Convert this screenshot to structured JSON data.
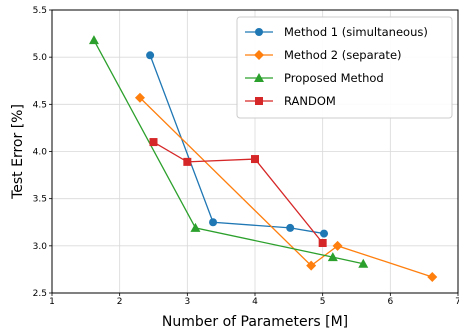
{
  "chart_data": {
    "type": "line",
    "title": "",
    "xlabel": "Number of Parameters [M]",
    "ylabel": "Test Error [%]",
    "xlim": [
      1,
      7
    ],
    "ylim": [
      2.5,
      5.5
    ],
    "xticks": [
      1,
      2,
      3,
      4,
      5,
      6,
      7
    ],
    "yticks": [
      2.5,
      3.0,
      3.5,
      4.0,
      4.5,
      5.0,
      5.5
    ],
    "xtick_labels": [
      "1",
      "2",
      "3",
      "4",
      "5",
      "6",
      "7"
    ],
    "ytick_labels": [
      "2.5",
      "3.0",
      "3.5",
      "4.0",
      "4.5",
      "5.0",
      "5.5"
    ],
    "grid": true,
    "legend_position": "top-right",
    "series": [
      {
        "name": "Method 1 (simultaneous)",
        "color": "#1f77b4",
        "marker": "circle",
        "x": [
          2.45,
          3.38,
          4.52,
          5.02
        ],
        "y": [
          5.02,
          3.25,
          3.19,
          3.13
        ]
      },
      {
        "name": "Method 2 (separate)",
        "color": "#ff7f0e",
        "marker": "diamond",
        "x": [
          2.3,
          4.83,
          5.22,
          6.62
        ],
        "y": [
          4.57,
          2.79,
          3.0,
          2.67
        ]
      },
      {
        "name": "Proposed Method",
        "color": "#2ca02c",
        "marker": "triangle",
        "x": [
          1.62,
          3.12,
          5.15,
          5.6
        ],
        "y": [
          5.18,
          3.19,
          2.88,
          2.81
        ]
      },
      {
        "name": "RANDOM",
        "color": "#d62728",
        "marker": "square",
        "x": [
          2.5,
          3.0,
          4.0,
          5.0
        ],
        "y": [
          4.1,
          3.89,
          3.92,
          3.03
        ]
      }
    ]
  }
}
